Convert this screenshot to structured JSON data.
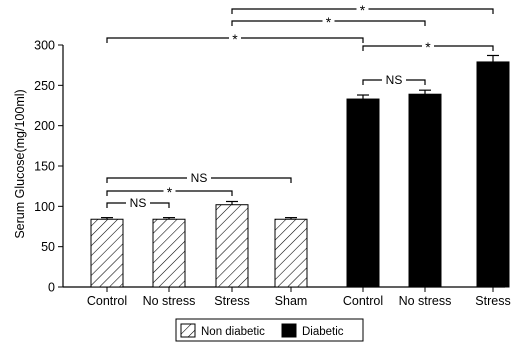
{
  "chart_data": {
    "type": "bar",
    "title": "",
    "xlabel": "",
    "ylabel": "Serum Glucose(mg/100ml)",
    "ylim": [
      0,
      300
    ],
    "yticks": [
      "0",
      "50",
      "100",
      "150",
      "200",
      "250",
      "300"
    ],
    "grid": false,
    "legend_position": "bottom-center",
    "categories": [
      "Control",
      "No stress",
      "Stress",
      "Sham",
      "Control",
      "No stress",
      "Stress"
    ],
    "groups": [
      "Non diabetic",
      "Non diabetic",
      "Non diabetic",
      "Non diabetic",
      "Diabetic",
      "Diabetic",
      "Diabetic"
    ],
    "values": [
      84,
      84,
      102,
      84,
      233,
      239,
      279
    ],
    "errors": [
      2,
      2,
      4,
      2,
      5,
      5,
      8
    ],
    "legend": [
      {
        "label": "Non diabetic",
        "style": "hatched"
      },
      {
        "label": "Diabetic",
        "style": "solid"
      }
    ],
    "significance": [
      {
        "from": 0,
        "to": 1,
        "label": "NS"
      },
      {
        "from": 0,
        "to": 2,
        "label": "*"
      },
      {
        "from": 0,
        "to": 3,
        "label": "NS"
      },
      {
        "from": 4,
        "to": 5,
        "label": "NS"
      },
      {
        "from": 0,
        "to": 4,
        "label": "*"
      },
      {
        "from": 4,
        "to": 6,
        "label": "*"
      },
      {
        "from": 2,
        "to": 5,
        "label": "*"
      },
      {
        "from": 2,
        "to": 6,
        "label": "*"
      }
    ],
    "colors": {
      "diabetic_fill": "#000000",
      "non_diabetic_fill": "#ffffff",
      "stroke": "#000000"
    }
  }
}
